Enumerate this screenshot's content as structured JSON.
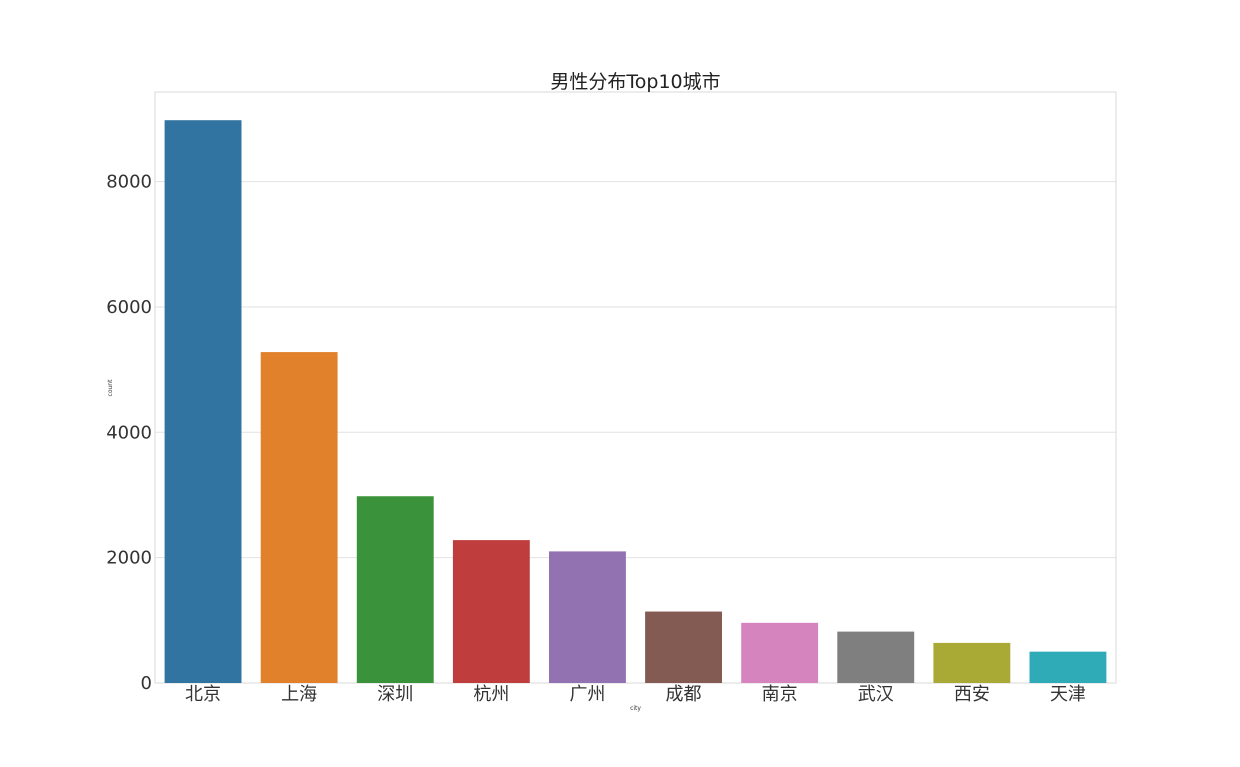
{
  "chart_data": {
    "type": "bar",
    "title": "男性分布Top10城市",
    "xlabel": "city",
    "ylabel": "count",
    "categories": [
      "北京",
      "上海",
      "深圳",
      "杭州",
      "广州",
      "成都",
      "南京",
      "武汉",
      "西安",
      "天津"
    ],
    "values": [
      8980,
      5280,
      2980,
      2280,
      2100,
      1140,
      960,
      820,
      640,
      500
    ],
    "colors": [
      "#3274a1",
      "#e1812c",
      "#3a923a",
      "#c03d3e",
      "#9372b2",
      "#845b53",
      "#d684bd",
      "#7f7f7f",
      "#a9aa35",
      "#2fabb8"
    ],
    "yticks": [
      0,
      2000,
      4000,
      6000,
      8000
    ],
    "ylim": [
      0,
      9430
    ],
    "grid": true,
    "legend": "none"
  }
}
